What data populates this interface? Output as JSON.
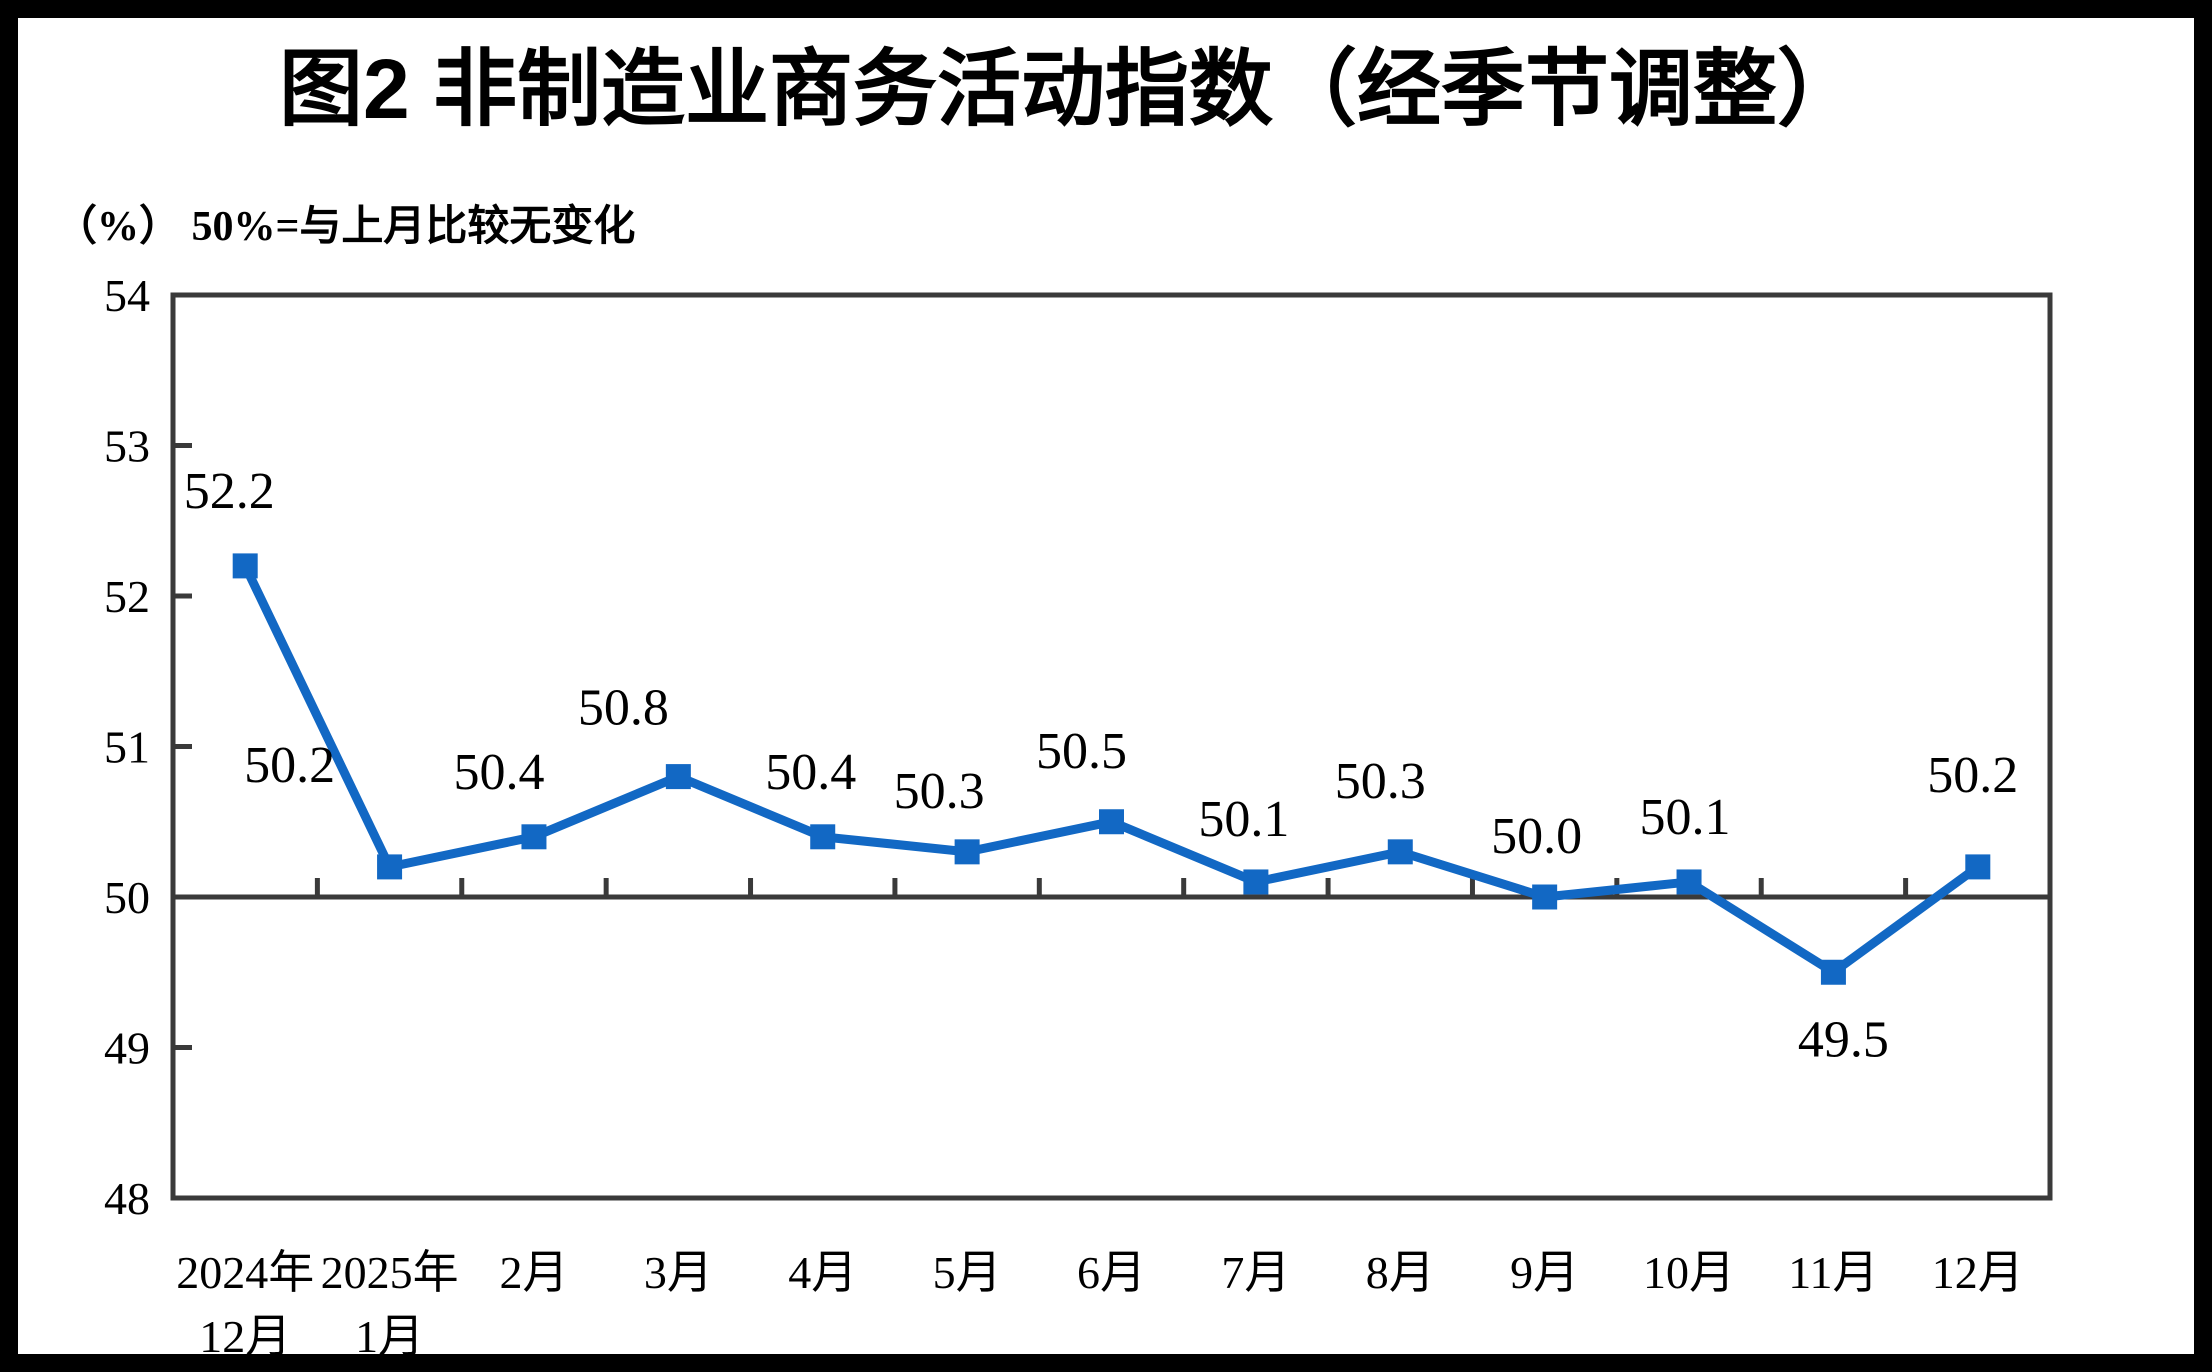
{
  "page": {
    "background_color": "#ffffff",
    "outer_border_color": "#000000"
  },
  "chart_data": {
    "type": "line",
    "title": "图2 非制造业商务活动指数（经季节调整）",
    "unit_label": "（%） 50%=与上月比较无变化",
    "categories": [
      [
        "2024年",
        "12月"
      ],
      [
        "2025年",
        "1月"
      ],
      [
        "2月"
      ],
      [
        "3月"
      ],
      [
        "4月"
      ],
      [
        "5月"
      ],
      [
        "6月"
      ],
      [
        "7月"
      ],
      [
        "8月"
      ],
      [
        "9月"
      ],
      [
        "10月"
      ],
      [
        "11月"
      ],
      [
        "12月"
      ]
    ],
    "series": [
      {
        "name": "非制造业商务活动指数",
        "values": [
          52.2,
          50.2,
          50.4,
          50.8,
          50.4,
          50.3,
          50.5,
          50.1,
          50.3,
          50.0,
          50.1,
          49.5,
          50.2
        ]
      }
    ],
    "data_labels": [
      "52.2",
      "50.2",
      "50.4",
      "50.8",
      "50.4",
      "50.3",
      "50.5",
      "50.1",
      "50.3",
      "50.0",
      "50.1",
      "49.5",
      "50.2"
    ],
    "ylim": [
      48,
      54
    ],
    "yticks": [
      48,
      49,
      50,
      51,
      52,
      53,
      54
    ],
    "reference_line_y": 50,
    "grid": false,
    "legend": "none",
    "marker": "square",
    "line_color": "#1268c4",
    "frame_color": "#3a3a3a",
    "text_color": "#000000"
  }
}
